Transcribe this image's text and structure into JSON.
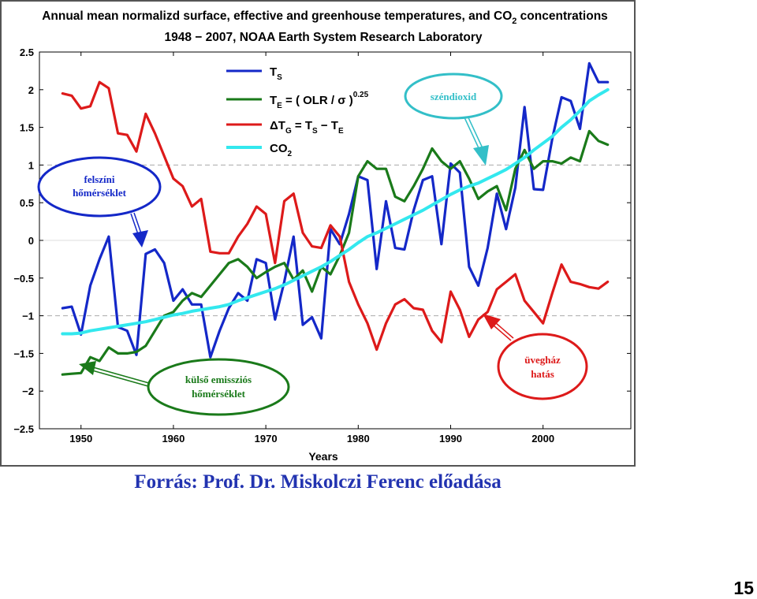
{
  "slide": {
    "caption": "Forrás: Prof. Dr. Miskolczi Ferenc előadása",
    "page_number": "15"
  },
  "chart_data": {
    "type": "line",
    "title_line1_a": "Annual mean normalizd surface, effective and greenhouse temperatures, and CO",
    "title_line1_sub": "2",
    "title_line1_b": " concentrations",
    "title_line2": "1948 − 2007,  NOAA Earth System Research Laboratory",
    "xlabel": "Years",
    "ylabel": "",
    "xlim": [
      1945.5,
      2009.5
    ],
    "ylim": [
      -2.5,
      2.5
    ],
    "xticks": [
      1950,
      1960,
      1970,
      1980,
      1990,
      2000
    ],
    "yticks": [
      2.5,
      2,
      1.5,
      1,
      0.5,
      0,
      -0.5,
      -1,
      -1.5,
      -2,
      -2.5
    ],
    "ytick_labels": [
      "2.5",
      "2",
      "1.5",
      "1",
      "0.5",
      "0",
      "−0.5",
      "−1",
      "−1.5",
      "−2",
      "−2.5"
    ],
    "reference_lines": [
      1,
      -1
    ],
    "grid": false,
    "legend_placement": "top-center",
    "x": [
      1948,
      1949,
      1950,
      1951,
      1952,
      1953,
      1954,
      1955,
      1956,
      1957,
      1958,
      1959,
      1960,
      1961,
      1962,
      1963,
      1964,
      1965,
      1966,
      1967,
      1968,
      1969,
      1970,
      1971,
      1972,
      1973,
      1974,
      1975,
      1976,
      1977,
      1978,
      1979,
      1980,
      1981,
      1982,
      1983,
      1984,
      1985,
      1986,
      1987,
      1988,
      1989,
      1990,
      1991,
      1992,
      1993,
      1994,
      1995,
      1996,
      1997,
      1998,
      1999,
      2000,
      2001,
      2002,
      2003,
      2004,
      2005,
      2006,
      2007
    ],
    "series": [
      {
        "key": "ts",
        "color": "#1428c8",
        "values": [
          -0.9,
          -0.88,
          -1.25,
          -0.6,
          -0.25,
          0.05,
          -1.15,
          -1.2,
          -1.52,
          -0.18,
          -0.12,
          -0.3,
          -0.8,
          -0.65,
          -0.85,
          -0.85,
          -1.55,
          -1.2,
          -0.9,
          -0.7,
          -0.8,
          -0.25,
          -0.3,
          -1.05,
          -0.55,
          0.05,
          -1.12,
          -1.02,
          -1.3,
          0.15,
          -0.05,
          0.35,
          0.85,
          0.8,
          -0.38,
          0.52,
          -0.1,
          -0.12,
          0.4,
          0.8,
          0.85,
          -0.05,
          1.02,
          0.9,
          -0.35,
          -0.6,
          -0.1,
          0.62,
          0.15,
          0.7,
          1.77,
          0.68,
          0.67,
          1.35,
          1.9,
          1.85,
          1.48,
          2.35,
          2.1,
          2.1
        ]
      },
      {
        "key": "te",
        "color": "#1a7a1a",
        "values": [
          -1.78,
          -1.77,
          -1.76,
          -1.55,
          -1.6,
          -1.42,
          -1.5,
          -1.5,
          -1.48,
          -1.4,
          -1.2,
          -1,
          -0.95,
          -0.8,
          -0.7,
          -0.75,
          -0.6,
          -0.45,
          -0.3,
          -0.25,
          -0.35,
          -0.5,
          -0.42,
          -0.35,
          -0.3,
          -0.52,
          -0.4,
          -0.68,
          -0.35,
          -0.45,
          -0.2,
          0.1,
          0.85,
          1.05,
          0.95,
          0.95,
          0.58,
          0.52,
          0.72,
          0.95,
          1.22,
          1.05,
          0.95,
          1.05,
          0.82,
          0.55,
          0.65,
          0.72,
          0.4,
          0.95,
          1.2,
          0.95,
          1.05,
          1.05,
          1.02,
          1.1,
          1.05,
          1.45,
          1.32,
          1.27
        ]
      },
      {
        "key": "tg",
        "color": "#dd1a1a",
        "values": [
          1.95,
          1.92,
          1.75,
          1.78,
          2.1,
          2.02,
          1.42,
          1.4,
          1.18,
          1.68,
          1.42,
          1.12,
          0.82,
          0.72,
          0.45,
          0.55,
          -0.15,
          -0.17,
          -0.17,
          0.05,
          0.22,
          0.45,
          0.35,
          -0.3,
          0.52,
          0.62,
          0.1,
          -0.08,
          -0.1,
          0.2,
          0.05,
          -0.55,
          -0.85,
          -1.1,
          -1.45,
          -1.1,
          -0.85,
          -0.78,
          -0.9,
          -0.92,
          -1.2,
          -1.35,
          -0.68,
          -0.92,
          -1.28,
          -1.05,
          -0.95,
          -0.65,
          -0.55,
          -0.45,
          -0.8,
          -0.95,
          -1.1,
          -0.7,
          -0.32,
          -0.55,
          -0.58,
          -0.62,
          -0.64,
          -0.55
        ]
      },
      {
        "key": "co2",
        "color": "#33e8ee",
        "values": [
          -1.24,
          -1.24,
          -1.23,
          -1.2,
          -1.18,
          -1.16,
          -1.14,
          -1.12,
          -1.1,
          -1.08,
          -1.05,
          -1.02,
          -0.99,
          -0.97,
          -0.94,
          -0.92,
          -0.9,
          -0.88,
          -0.85,
          -0.8,
          -0.76,
          -0.72,
          -0.68,
          -0.64,
          -0.59,
          -0.53,
          -0.47,
          -0.41,
          -0.35,
          -0.28,
          -0.2,
          -0.12,
          -0.03,
          0.05,
          0.1,
          0.16,
          0.22,
          0.28,
          0.34,
          0.4,
          0.47,
          0.54,
          0.61,
          0.67,
          0.72,
          0.76,
          0.82,
          0.88,
          0.94,
          1.02,
          1.1,
          1.2,
          1.29,
          1.38,
          1.5,
          1.6,
          1.72,
          1.85,
          1.93,
          2.0
        ]
      }
    ],
    "legend": [
      {
        "key": "ts",
        "main": "T",
        "sub": "S",
        "rest": ""
      },
      {
        "key": "te",
        "main": "T",
        "sub": "E",
        "rest": " = ( OLR / σ )",
        "sup": "0.25"
      },
      {
        "key": "tg",
        "main": "ΔT",
        "sub": "G",
        "rest": " = T",
        "sub2": "S",
        "rest2": " − T",
        "sub3": "E"
      },
      {
        "key": "co2",
        "main": "CO",
        "sub": "2",
        "rest": ""
      }
    ],
    "annotations": [
      {
        "key": "felszini",
        "line1": "felszíni",
        "line2": "hőmérséklet",
        "color": "#1428c8"
      },
      {
        "key": "kulso",
        "line1": "külső emissziós",
        "line2": "hőmérséklet",
        "color": "#1a7a1a"
      },
      {
        "key": "szendioxid",
        "line1": "széndioxid",
        "line2": "",
        "color": "#33bfc8"
      },
      {
        "key": "uveghaz",
        "line1": "üvegház",
        "line2": "hatás",
        "color": "#dd1a1a"
      }
    ]
  }
}
